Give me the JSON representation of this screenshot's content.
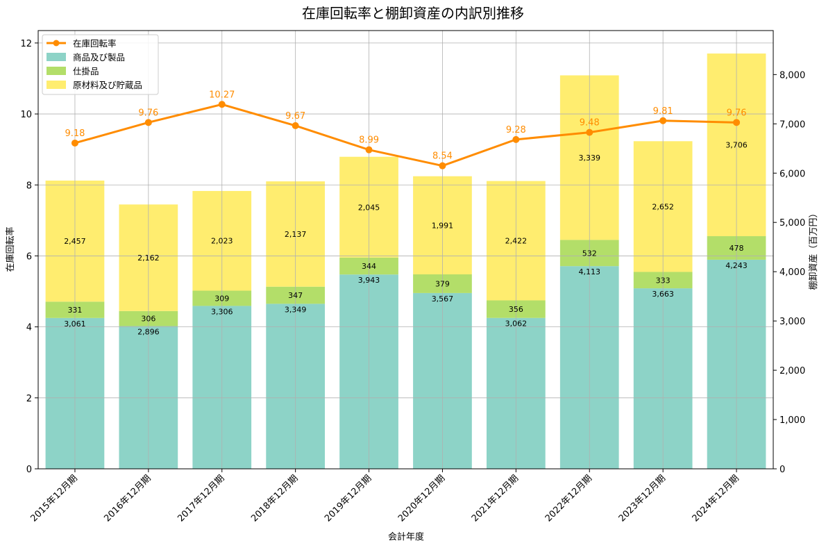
{
  "chart_data": {
    "type": "bar",
    "title": "在庫回転率と棚卸資産の内訳別推移",
    "xlabel": "会計年度",
    "ylabel_left": "在庫回転率",
    "ylabel_right": "棚卸資産（百万円）",
    "categories": [
      "2015年12月期",
      "2016年12月期",
      "2017年12月期",
      "2018年12月期",
      "2019年12月期",
      "2020年12月期",
      "2021年12月期",
      "2022年12月期",
      "2023年12月期",
      "2024年12月期"
    ],
    "stacked_series": [
      {
        "name": "商品及び製品",
        "color": "#8dd3c7",
        "values": [
          3061,
          2896,
          3306,
          3349,
          3943,
          3567,
          3062,
          4113,
          3663,
          4243
        ],
        "labels": [
          "3,061",
          "2,896",
          "3,306",
          "3,349",
          "3,943",
          "3,567",
          "3,062",
          "4,113",
          "3,663",
          "4,243"
        ]
      },
      {
        "name": "仕掛品",
        "color": "#b3de69",
        "values": [
          331,
          306,
          309,
          347,
          344,
          379,
          356,
          532,
          333,
          478
        ],
        "labels": [
          "331",
          "306",
          "309",
          "347",
          "344",
          "379",
          "356",
          "532",
          "333",
          "478"
        ]
      },
      {
        "name": "原材料及び貯蔵品",
        "color": "#ffed6f",
        "values": [
          2457,
          2162,
          2023,
          2137,
          2045,
          1991,
          2422,
          3339,
          2652,
          3706
        ],
        "labels": [
          "2,457",
          "2,162",
          "2,023",
          "2,137",
          "2,045",
          "1,991",
          "2,422",
          "3,339",
          "2,652",
          "3,706"
        ]
      }
    ],
    "line_series": {
      "name": "在庫回転率",
      "color": "#ff8c00",
      "values": [
        9.18,
        9.76,
        10.27,
        9.67,
        8.99,
        8.54,
        9.28,
        9.48,
        9.81,
        9.76
      ],
      "labels": [
        "9.18",
        "9.76",
        "10.27",
        "9.67",
        "8.99",
        "8.54",
        "9.28",
        "9.48",
        "9.81",
        "9.76"
      ]
    },
    "left_axis": {
      "ylim": [
        0,
        12.35
      ],
      "ticks": [
        0,
        2,
        4,
        6,
        8,
        10,
        12
      ],
      "tick_labels": [
        "0",
        "2",
        "4",
        "6",
        "8",
        "10",
        "12"
      ]
    },
    "right_axis": {
      "ylim": [
        0,
        8893
      ],
      "ticks": [
        0,
        1000,
        2000,
        3000,
        4000,
        5000,
        6000,
        7000,
        8000
      ],
      "tick_labels": [
        "0",
        "1,000",
        "2,000",
        "3,000",
        "4,000",
        "5,000",
        "6,000",
        "7,000",
        "8,000"
      ]
    },
    "grid": true,
    "legend_position": "upper-left"
  }
}
